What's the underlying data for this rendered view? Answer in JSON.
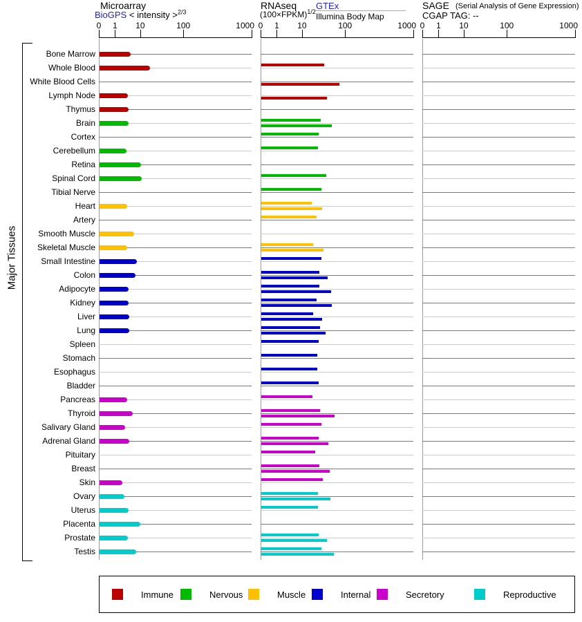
{
  "side_label": "Major Tissues",
  "panels": {
    "microarray": {
      "title": "Microarray",
      "link": "BioGPS",
      "sublabel": "< intensity >",
      "exponent": "2/3"
    },
    "rnaseq": {
      "title": "RNAseq",
      "sublabel": "(100×FPKM)",
      "exponent": "1/2",
      "link": "GTEx",
      "sublink": "Illumina Body Map"
    },
    "sage": {
      "title": "SAGE",
      "subtitle": "(Serial Analysis of Gene Expression)",
      "cgap": "CGAP TAG:  --"
    }
  },
  "axis": {
    "labels": [
      "0",
      "1",
      "10",
      "100",
      "1000"
    ],
    "fractions": [
      0,
      0.106,
      0.271,
      0.553,
      1.0
    ]
  },
  "legend": [
    {
      "label": "Immune",
      "color": "#bb0000"
    },
    {
      "label": "Nervous",
      "color": "#00bb00"
    },
    {
      "label": "Muscle",
      "color": "#ffc000"
    },
    {
      "label": "Internal",
      "color": "#0000cc"
    },
    {
      "label": "Secretory",
      "color": "#cc00cc"
    },
    {
      "label": "Reproductive",
      "color": "#00cccc"
    }
  ],
  "chart_data": {
    "type": "bar",
    "orientation": "horizontal",
    "scale": "piecewise log axis with ticks 0,1,10,100,1000",
    "panel_names": [
      "Microarray BioGPS < intensity >^(2/3)",
      "RNAseq GTEx (100×FPKM)^(1/2)",
      "RNAseq Illumina Body Map",
      "SAGE CGAP TAG"
    ],
    "sage_values": "none (CGAP TAG: --)",
    "category_colors": {
      "immune": "#bb0000",
      "nervous": "#00bb00",
      "muscle": "#ffc000",
      "internal": "#0000cc",
      "secretory": "#cc00cc",
      "reproductive": "#00cccc"
    },
    "tissues": [
      {
        "name": "Bone Marrow",
        "category": "immune",
        "microarray": 4.2,
        "gtex": null,
        "bodymap": null,
        "sage": null
      },
      {
        "name": "Whole Blood",
        "category": "immune",
        "microarray": 17,
        "gtex": 33,
        "bodymap": null,
        "sage": null
      },
      {
        "name": "White Blood Cells",
        "category": "immune",
        "microarray": null,
        "gtex": null,
        "bodymap": 74,
        "sage": null
      },
      {
        "name": "Lymph Node",
        "category": "immune",
        "microarray": 3.2,
        "gtex": null,
        "bodymap": 38,
        "sage": null
      },
      {
        "name": "Thymus",
        "category": "immune",
        "microarray": 3.4,
        "gtex": null,
        "bodymap": null,
        "sage": null
      },
      {
        "name": "Brain",
        "category": "nervous",
        "microarray": 3.4,
        "gtex": 27,
        "bodymap": 49,
        "sage": null
      },
      {
        "name": "Cortex",
        "category": "nervous",
        "microarray": null,
        "gtex": 24.5,
        "bodymap": null,
        "sage": null
      },
      {
        "name": "Cerebellum",
        "category": "nervous",
        "microarray": 2.8,
        "gtex": 23.5,
        "bodymap": null,
        "sage": null
      },
      {
        "name": "Retina",
        "category": "nervous",
        "microarray": 10.5,
        "gtex": null,
        "bodymap": null,
        "sage": null
      },
      {
        "name": "Spinal Cord",
        "category": "nervous",
        "microarray": 11,
        "gtex": 36,
        "bodymap": null,
        "sage": null
      },
      {
        "name": "Tibial Nerve",
        "category": "nervous",
        "microarray": null,
        "gtex": 28,
        "bodymap": null,
        "sage": null
      },
      {
        "name": "Heart",
        "category": "muscle",
        "microarray": 3.0,
        "gtex": 17,
        "bodymap": 29,
        "sage": null
      },
      {
        "name": "Artery",
        "category": "muscle",
        "microarray": null,
        "gtex": 22,
        "bodymap": null,
        "sage": null
      },
      {
        "name": "Smooth Muscle",
        "category": "muscle",
        "microarray": 5.7,
        "gtex": null,
        "bodymap": null,
        "sage": null
      },
      {
        "name": "Skeletal Muscle",
        "category": "muscle",
        "microarray": 3.0,
        "gtex": 18,
        "bodymap": 31.5,
        "sage": null
      },
      {
        "name": "Small Intestine",
        "category": "internal",
        "microarray": 7.3,
        "gtex": 28,
        "bodymap": null,
        "sage": null
      },
      {
        "name": "Colon",
        "category": "internal",
        "microarray": 6.5,
        "gtex": 25,
        "bodymap": 39.5,
        "sage": null
      },
      {
        "name": "Adipocyte",
        "category": "internal",
        "microarray": 3.4,
        "gtex": 25,
        "bodymap": 47,
        "sage": null
      },
      {
        "name": "Kidney",
        "category": "internal",
        "microarray": 3.4,
        "gtex": 22,
        "bodymap": 49,
        "sage": null
      },
      {
        "name": "Liver",
        "category": "internal",
        "microarray": 3.6,
        "gtex": 18,
        "bodymap": 29,
        "sage": null
      },
      {
        "name": "Lung",
        "category": "internal",
        "microarray": 3.6,
        "gtex": 26,
        "bodymap": 35,
        "sage": null
      },
      {
        "name": "Spleen",
        "category": "internal",
        "microarray": null,
        "gtex": 24.5,
        "bodymap": null,
        "sage": null
      },
      {
        "name": "Stomach",
        "category": "internal",
        "microarray": null,
        "gtex": 22.5,
        "bodymap": null,
        "sage": null
      },
      {
        "name": "Esophagus",
        "category": "internal",
        "microarray": null,
        "gtex": 22.5,
        "bodymap": null,
        "sage": null
      },
      {
        "name": "Bladder",
        "category": "internal",
        "microarray": null,
        "gtex": 24.5,
        "bodymap": null,
        "sage": null
      },
      {
        "name": "Pancreas",
        "category": "secretory",
        "microarray": 3.0,
        "gtex": 17.5,
        "bodymap": null,
        "sage": null
      },
      {
        "name": "Thyroid",
        "category": "secretory",
        "microarray": 5.0,
        "gtex": 26,
        "bodymap": 57,
        "sage": null
      },
      {
        "name": "Salivary Gland",
        "category": "secretory",
        "microarray": 2.5,
        "gtex": 28,
        "bodymap": null,
        "sage": null
      },
      {
        "name": "Adrenal Gland",
        "category": "secretory",
        "microarray": 3.6,
        "gtex": 24.5,
        "bodymap": 41,
        "sage": null
      },
      {
        "name": "Pituitary",
        "category": "secretory",
        "microarray": null,
        "gtex": 20,
        "bodymap": null,
        "sage": null
      },
      {
        "name": "Breast",
        "category": "secretory",
        "microarray": null,
        "gtex": 25,
        "bodymap": 44,
        "sage": null
      },
      {
        "name": "Skin",
        "category": "secretory",
        "microarray": 2.0,
        "gtex": 30.5,
        "bodymap": null,
        "sage": null
      },
      {
        "name": "Ovary",
        "category": "reproductive",
        "microarray": 2.4,
        "gtex": 23.5,
        "bodymap": 46,
        "sage": null
      },
      {
        "name": "Uterus",
        "category": "reproductive",
        "microarray": 3.4,
        "gtex": 23.5,
        "bodymap": null,
        "sage": null
      },
      {
        "name": "Placenta",
        "category": "reproductive",
        "microarray": 10.2,
        "gtex": null,
        "bodymap": null,
        "sage": null
      },
      {
        "name": "Prostate",
        "category": "reproductive",
        "microarray": 3.2,
        "gtex": 24.5,
        "bodymap": 38,
        "sage": null
      },
      {
        "name": "Testis",
        "category": "reproductive",
        "microarray": 6.9,
        "gtex": 28,
        "bodymap": 55,
        "sage": null
      }
    ]
  }
}
